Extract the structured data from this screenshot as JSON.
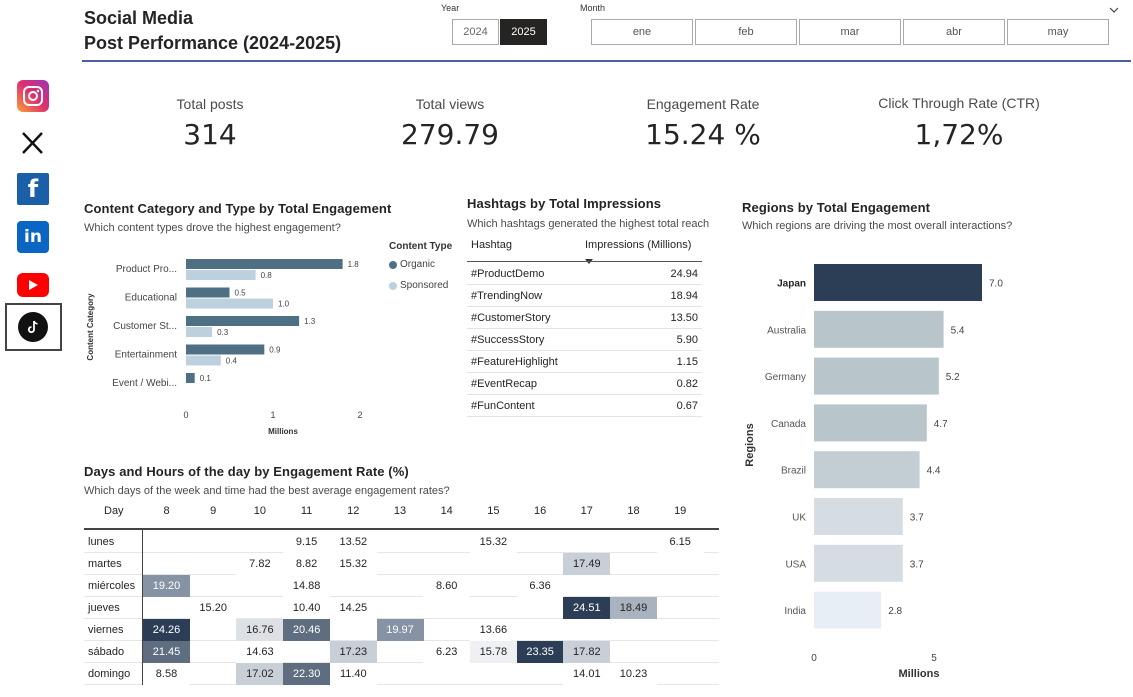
{
  "header": {
    "title_line1": "Social Media",
    "title_line2": "Post Performance (2024-2025)"
  },
  "slicers": {
    "year_label": "Year",
    "years": [
      "2024",
      "2025"
    ],
    "selected_year": "2025",
    "month_label": "Month",
    "months": [
      "ene",
      "feb",
      "mar",
      "abr",
      "may"
    ]
  },
  "social": [
    "instagram-icon",
    "x-icon",
    "facebook-icon",
    "linkedin-icon",
    "youtube-icon",
    "tiktok-icon"
  ],
  "kpis": [
    {
      "label": "Total posts",
      "value": "314"
    },
    {
      "label": "Total views",
      "value": "279.79"
    },
    {
      "label": "Engagement Rate",
      "value": "15.24 %"
    },
    {
      "label": "Click Through Rate (CTR)",
      "value": "1,72%"
    }
  ],
  "content_chart": {
    "title": "Content Category and Type by Total Engagement",
    "subtitle": "Which content types drove the highest engagement?",
    "legend_title": "Content Type",
    "ylabel": "Content Category",
    "xlabel": "Millions",
    "ticks": [
      "0",
      "1",
      "2"
    ]
  },
  "hashtags": {
    "title": "Hashtags by Total Impressions",
    "subtitle": "Which hashtags generated the highest total reach",
    "col_hashtag": "Hashtag",
    "col_impressions": "Impressions (Millions)",
    "rows": [
      {
        "tag": "#ProductDemo",
        "value": "24.94"
      },
      {
        "tag": "#TrendingNow",
        "value": "18.94"
      },
      {
        "tag": "#CustomerStory",
        "value": "13.50"
      },
      {
        "tag": "#SuccessStory",
        "value": "5.90"
      },
      {
        "tag": "#FeatureHighlight",
        "value": "1.15"
      },
      {
        "tag": "#EventRecap",
        "value": "0.82"
      },
      {
        "tag": "#FunContent",
        "value": "0.67"
      }
    ]
  },
  "regions_chart": {
    "title": "Regions by Total Engagement",
    "subtitle": "Which regions are driving the most overall interactions?",
    "ylabel": "Regions",
    "xlabel": "Millions",
    "ticks": [
      "0",
      "5"
    ]
  },
  "heatmap": {
    "title": "Days and Hours of the day by Engagement Rate (%)",
    "subtitle": "Which days of the week and time had the best average engagement rates?",
    "day_header": "Day",
    "hours": [
      "8",
      "9",
      "10",
      "11",
      "12",
      "13",
      "14",
      "15",
      "16",
      "17",
      "18",
      "19"
    ],
    "rows": [
      {
        "day": "lunes",
        "values": [
          "",
          "",
          "",
          "9.15",
          "13.52",
          "",
          "",
          "15.32",
          "",
          "",
          "",
          "6.15"
        ]
      },
      {
        "day": "martes",
        "values": [
          "",
          "",
          "7.82",
          "8.82",
          "15.32",
          "",
          "",
          "",
          "",
          "17.49",
          "",
          ""
        ]
      },
      {
        "day": "miércoles",
        "values": [
          "19.20",
          "",
          "",
          "14.88",
          "",
          "",
          "8.60",
          "",
          "6.36",
          "",
          "",
          ""
        ]
      },
      {
        "day": "jueves",
        "values": [
          "",
          "15.20",
          "",
          "10.40",
          "14.25",
          "",
          "",
          "",
          "",
          "24.51",
          "18.49",
          ""
        ]
      },
      {
        "day": "viernes",
        "values": [
          "24.26",
          "",
          "16.76",
          "20.46",
          "",
          "19.97",
          "",
          "13.66",
          "",
          "",
          "",
          ""
        ]
      },
      {
        "day": "sábado",
        "values": [
          "21.45",
          "",
          "14.63",
          "",
          "17.23",
          "",
          "6.23",
          "15.78",
          "23.35",
          "17.82",
          "",
          ""
        ]
      },
      {
        "day": "domingo",
        "values": [
          "8.58",
          "",
          "17.02",
          "22.30",
          "11.40",
          "",
          "",
          "",
          "",
          "14.01",
          "10.23",
          ""
        ]
      }
    ]
  },
  "chart_data": [
    {
      "type": "bar",
      "orientation": "horizontal",
      "title": "Content Category and Type by Total Engagement",
      "categories": [
        "Product Pro...",
        "Educational",
        "Customer St...",
        "Entertainment",
        "Event / Webi..."
      ],
      "series": [
        {
          "name": "Organic",
          "values": [
            1.8,
            0.5,
            1.3,
            0.9,
            0.1
          ],
          "color": "#4f6f84"
        },
        {
          "name": "Sponsored",
          "values": [
            0.8,
            1.0,
            0.3,
            0.4,
            null
          ],
          "color": "#bcd0de"
        }
      ],
      "xlabel": "Millions",
      "ylabel": "Content Category",
      "xlim": [
        0,
        2
      ],
      "legend": "top-right"
    },
    {
      "type": "bar",
      "orientation": "horizontal",
      "title": "Regions by Total Engagement",
      "categories": [
        "Japan",
        "Australia",
        "Germany",
        "Canada",
        "Brazil",
        "UK",
        "USA",
        "India"
      ],
      "values": [
        7.0,
        5.4,
        5.2,
        4.7,
        4.4,
        3.7,
        3.7,
        2.8
      ],
      "labels": [
        "7.0",
        "5.4",
        "5.2",
        "4.7",
        "4.4",
        "3.7",
        "3.7",
        "2.8"
      ],
      "colors": [
        "#2c3e55",
        "#b8c6cc",
        "#b8c6cc",
        "#b8c6cc",
        "#c2ced3",
        "#d6dde2",
        "#d6dde2",
        "#e8eef6"
      ],
      "xlabel": "Millions",
      "ylabel": "Regions",
      "xlim": [
        0,
        7.5
      ]
    }
  ]
}
